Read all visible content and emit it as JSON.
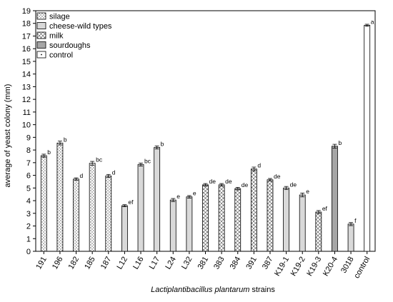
{
  "chart_data": {
    "type": "bar",
    "xlabel_italic": "Lactiplantibacillus plantarum",
    "xlabel_rest": " strains",
    "ylabel": "average of yeast colony (mm)",
    "ylim": [
      0,
      19
    ],
    "yticks": [
      0,
      1,
      2,
      3,
      4,
      5,
      6,
      7,
      8,
      9,
      10,
      11,
      12,
      13,
      14,
      15,
      16,
      17,
      18,
      19
    ],
    "grid": false,
    "legend_position": "top-left",
    "groups": [
      {
        "name": "silage",
        "pattern": "dots",
        "fill": "#ffffff"
      },
      {
        "name": "cheese-wild types",
        "pattern": "solid",
        "fill": "#d9d9d9"
      },
      {
        "name": "milk",
        "pattern": "crosshatch",
        "fill": "#ffffff"
      },
      {
        "name": "sourdoughs",
        "pattern": "solid",
        "fill": "#a6a6a6"
      },
      {
        "name": "control",
        "pattern": "solid",
        "fill": "#ffffff"
      }
    ],
    "bars": [
      {
        "category": "191",
        "group": "silage",
        "value": 7.55,
        "error": 0.12,
        "letter": "b"
      },
      {
        "category": "196",
        "group": "silage",
        "value": 8.55,
        "error": 0.15,
        "letter": "b"
      },
      {
        "category": "182",
        "group": "silage",
        "value": 5.7,
        "error": 0.1,
        "letter": "d"
      },
      {
        "category": "185",
        "group": "silage",
        "value": 6.95,
        "error": 0.15,
        "letter": "bc"
      },
      {
        "category": "187",
        "group": "silage",
        "value": 5.95,
        "error": 0.12,
        "letter": "d"
      },
      {
        "category": "L12",
        "group": "cheese-wild types",
        "value": 3.6,
        "error": 0.08,
        "letter": "ef"
      },
      {
        "category": "L16",
        "group": "cheese-wild types",
        "value": 6.85,
        "error": 0.12,
        "letter": "bc"
      },
      {
        "category": "L17",
        "group": "cheese-wild types",
        "value": 8.2,
        "error": 0.12,
        "letter": "b"
      },
      {
        "category": "L24",
        "group": "cheese-wild types",
        "value": 4.05,
        "error": 0.12,
        "letter": "e"
      },
      {
        "category": "L32",
        "group": "cheese-wild types",
        "value": 4.3,
        "error": 0.1,
        "letter": "e"
      },
      {
        "category": "381",
        "group": "milk",
        "value": 5.25,
        "error": 0.1,
        "letter": "de"
      },
      {
        "category": "383",
        "group": "milk",
        "value": 5.25,
        "error": 0.1,
        "letter": "de"
      },
      {
        "category": "384",
        "group": "milk",
        "value": 4.95,
        "error": 0.1,
        "letter": "de"
      },
      {
        "category": "391",
        "group": "milk",
        "value": 6.5,
        "error": 0.15,
        "letter": "d"
      },
      {
        "category": "387",
        "group": "milk",
        "value": 5.65,
        "error": 0.1,
        "letter": "de"
      },
      {
        "category": "K19-1",
        "group": "cheese-wild types",
        "value": 5.0,
        "error": 0.12,
        "letter": "de"
      },
      {
        "category": "K19-2",
        "group": "cheese-wild types",
        "value": 4.45,
        "error": 0.15,
        "letter": "e"
      },
      {
        "category": "K19-3",
        "group": "milk",
        "value": 3.1,
        "error": 0.12,
        "letter": "ef"
      },
      {
        "category": "K20-4",
        "group": "sourdoughs",
        "value": 8.3,
        "error": 0.15,
        "letter": "b"
      },
      {
        "category": "3018",
        "group": "cheese-wild types",
        "value": 2.15,
        "error": 0.12,
        "letter": "f"
      },
      {
        "category": "control",
        "group": "control",
        "value": 17.85,
        "error": 0.08,
        "letter": "a"
      }
    ]
  }
}
